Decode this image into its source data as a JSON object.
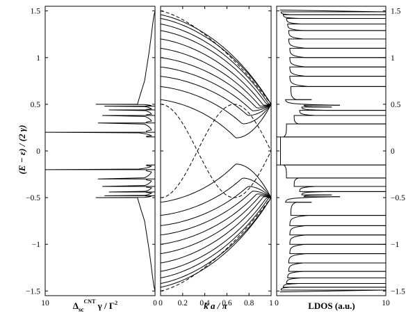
{
  "chart_data": [
    {
      "type": "line",
      "panel": "left",
      "description_axis": "horizontal axis reversed: 10 at left, 0 at right",
      "xlabel": {
        "main": "Δ",
        "sub1": "sc",
        "sup": "CNT",
        "rest": " γ / Γ",
        "sup2": "2"
      },
      "ylabel": "(E − ε) / (2 γ)",
      "xlim": [
        10,
        0
      ],
      "ylim": [
        -1.55,
        1.55
      ],
      "x_ticks": [
        {
          "v": 10,
          "label": "10"
        },
        {
          "v": 0,
          "label": "0"
        }
      ],
      "y_ticks": [
        {
          "v": 1.5,
          "label": "1.5"
        },
        {
          "v": 1,
          "label": "1"
        },
        {
          "v": 0.5,
          "label": "0.5"
        },
        {
          "v": 0,
          "label": "0"
        },
        {
          "v": -0.5,
          "label": "−0.5"
        },
        {
          "v": -1,
          "label": "−1"
        },
        {
          "v": -1.5,
          "label": "−1.5"
        }
      ],
      "gap": 0.15,
      "bands": [
        {
          "lo": 0.15,
          "hi": 0.2,
          "peak": 10
        },
        {
          "lo": 0.2,
          "hi": 0.3,
          "peak": 5.2
        },
        {
          "lo": 0.3,
          "hi": 0.38,
          "peak": 4.8
        },
        {
          "lo": 0.38,
          "hi": 0.44,
          "peak": 4.2
        },
        {
          "lo": 0.44,
          "hi": 0.48,
          "peak": 4.6
        },
        {
          "lo": 0.48,
          "hi": 0.5,
          "peak": 5.4
        }
      ],
      "tail": [
        [
          0.5,
          1.6
        ],
        [
          0.62,
          1.3
        ],
        [
          0.75,
          0.95
        ],
        [
          0.9,
          0.75
        ],
        [
          1.05,
          0.55
        ],
        [
          1.2,
          0.38
        ],
        [
          1.35,
          0.22
        ],
        [
          1.45,
          0.1
        ],
        [
          1.5,
          0.0
        ]
      ]
    },
    {
      "type": "line",
      "panel": "middle",
      "description_axis": "dispersion E(k)",
      "xlabel": "k a / π",
      "xlim": [
        0,
        1
      ],
      "ylim": [
        -1.55,
        1.55
      ],
      "x_ticks": [
        {
          "v": 0,
          "label": "0"
        },
        {
          "v": 0.2,
          "label": "0.2"
        },
        {
          "v": 0.4,
          "label": "0.4"
        },
        {
          "v": 0.6,
          "label": "0.6"
        },
        {
          "v": 0.8,
          "label": "0.8"
        },
        {
          "v": 1,
          "label": "1"
        }
      ],
      "solid_curves": [
        {
          "E0": 0.55,
          "Emin": 0.14,
          "kmin": 0.68
        },
        {
          "E0": 0.69,
          "Emin": 0.29,
          "kmin": 0.74
        },
        {
          "E0": 0.8,
          "Emin": 0.38,
          "kmin": 0.79
        },
        {
          "E0": 0.9,
          "Emin": 0.43,
          "kmin": 0.83
        },
        {
          "E0": 1.0,
          "Emin": 0.46,
          "kmin": 0.87
        },
        {
          "E0": 1.1,
          "Emin": 0.48,
          "kmin": 0.9
        },
        {
          "E0": 1.2,
          "Emin": 0.49,
          "kmin": 0.93
        },
        {
          "E0": 1.29,
          "Emin": 0.5,
          "kmin": 0.96
        },
        {
          "E0": 1.36,
          "Emin": 0.5,
          "kmin": 0.98
        },
        {
          "E0": 1.42,
          "Emin": 0.5,
          "kmin": 1.0
        },
        {
          "E0": 1.46,
          "Emin": 0.5,
          "kmin": 1.0
        }
      ],
      "dashed_curves": [
        {
          "name": "upper outer",
          "E0": 1.5,
          "E1": 0.5
        },
        {
          "name": "lower inner",
          "E0": 0.5,
          "E1": 0.5,
          "kcross": 0.667
        }
      ]
    },
    {
      "type": "line",
      "panel": "right",
      "description_axis": "local density of states",
      "xlabel": "LDOS (a.u.)",
      "xlim": [
        0,
        10
      ],
      "ylim": [
        -1.55,
        1.55
      ],
      "x_ticks": [
        {
          "v": 0,
          "label": "0"
        },
        {
          "v": 10,
          "label": "10"
        }
      ],
      "y_ticks": [
        {
          "v": 1.5,
          "label": "1.5"
        },
        {
          "v": 1,
          "label": "1"
        },
        {
          "v": 0.5,
          "label": "0.5"
        },
        {
          "v": 0,
          "label": "0"
        },
        {
          "v": -0.5,
          "label": "−0.5"
        },
        {
          "v": -1,
          "label": "−1"
        },
        {
          "v": -1.5,
          "label": "−1.5"
        }
      ],
      "gap": 0.15,
      "peaks": [
        {
          "E": 0.15,
          "h": 10,
          "base": 0.3
        },
        {
          "E": 0.29,
          "h": 10,
          "base": 0.9
        },
        {
          "E": 0.38,
          "h": 10,
          "base": 1.6
        },
        {
          "E": 0.435,
          "h": 10,
          "base": 2.1
        },
        {
          "E": 0.47,
          "h": 5.0,
          "base": 2.3
        },
        {
          "E": 0.49,
          "h": 5.8,
          "base": 2.5
        },
        {
          "E": 0.55,
          "h": 3.2,
          "base": 0.8
        },
        {
          "E": 0.69,
          "h": 10,
          "base": 1.3
        },
        {
          "E": 0.8,
          "h": 10,
          "base": 1.2
        },
        {
          "E": 0.9,
          "h": 10,
          "base": 1.2
        },
        {
          "E": 1.0,
          "h": 10,
          "base": 1.2
        },
        {
          "E": 1.1,
          "h": 10,
          "base": 1.2
        },
        {
          "E": 1.2,
          "h": 10,
          "base": 1.1
        },
        {
          "E": 1.29,
          "h": 10,
          "base": 1.1
        },
        {
          "E": 1.36,
          "h": 10,
          "base": 1.0
        },
        {
          "E": 1.42,
          "h": 10,
          "base": 0.9
        },
        {
          "E": 1.46,
          "h": 10,
          "base": 0.6
        },
        {
          "E": 1.49,
          "h": 10,
          "base": 0.4
        }
      ]
    }
  ]
}
